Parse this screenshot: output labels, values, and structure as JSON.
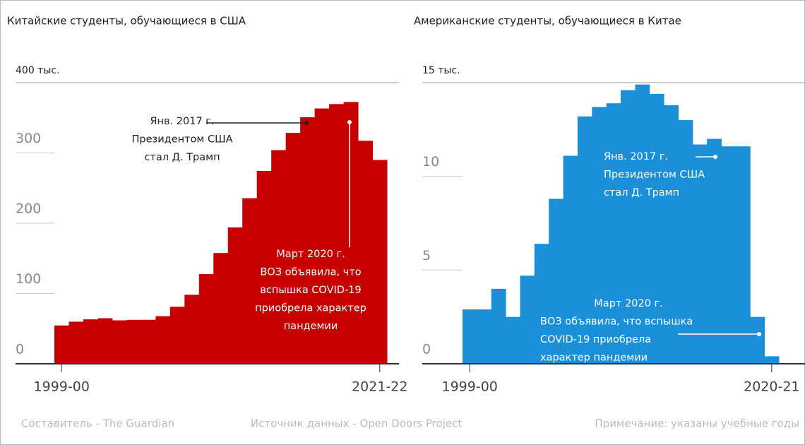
{
  "chart_data": [
    {
      "type": "step-area",
      "title": "Китайские студенты, обучающиеся в США",
      "color": "#c70000",
      "categories": [
        "1999-00",
        null,
        null,
        null,
        null,
        null,
        null,
        null,
        null,
        null,
        null,
        null,
        null,
        null,
        null,
        null,
        null,
        null,
        null,
        null,
        null,
        null,
        "2021-22"
      ],
      "values": [
        54.5,
        59.9,
        63.2,
        64.8,
        61.8,
        62.5,
        62.6,
        67.7,
        81.1,
        98.2,
        127.6,
        157.6,
        194,
        235.6,
        274.4,
        304,
        328.5,
        350.8,
        363.3,
        369.5,
        372.5,
        317.3,
        290
      ],
      "ylim": [
        0,
        400
      ],
      "yticks": [
        0,
        100,
        200,
        300,
        {
          "value": 400,
          "label": "400 тыс."
        }
      ],
      "annotations": [
        {
          "lines": [
            "Янв. 2017 г.",
            "Президентом США",
            "стал Д. Трамп"
          ]
        },
        {
          "lines": [
            "Март 2020 г.",
            "ВОЗ объявила, что",
            "вспышка COVID-19",
            "приобрела характер",
            "пандемии"
          ]
        }
      ]
    },
    {
      "type": "step-area",
      "title": "Американские студенты, обучающиеся в Китае",
      "color": "#1b90d8",
      "categories": [
        "1999-00",
        null,
        null,
        null,
        null,
        null,
        null,
        null,
        null,
        null,
        null,
        null,
        null,
        null,
        null,
        null,
        null,
        null,
        null,
        null,
        null,
        "2020-21"
      ],
      "values": [
        2.9,
        2.9,
        4.0,
        2.5,
        4.7,
        6.4,
        8.8,
        11.1,
        13.2,
        13.7,
        13.9,
        14.6,
        14.9,
        14.4,
        13.8,
        13.0,
        11.7,
        12.0,
        11.6,
        11.6,
        2.5,
        0.4
      ],
      "ylim": [
        0,
        15
      ],
      "yticks": [
        0,
        5,
        10,
        {
          "value": 15,
          "label": "15 тыс."
        }
      ],
      "annotations": [
        {
          "lines": [
            "Янв. 2017 г.",
            "Президентом США",
            "стал Д. Трамп"
          ]
        },
        {
          "lines": [
            "Март 2020 г.",
            "ВОЗ объявила, что вспышка",
            "COVID-19 приобрела",
            "характер пандемии"
          ]
        }
      ]
    }
  ],
  "footer": [
    "Составитель - The Guardian",
    "Источник данных - Open Doors Project",
    "Примечание: указаны учебные годы"
  ]
}
